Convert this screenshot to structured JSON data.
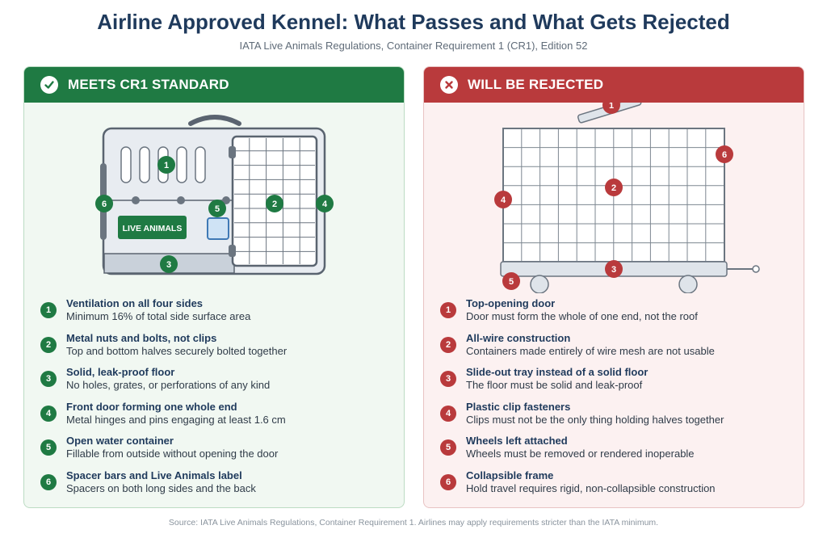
{
  "title": "Airline Approved Kennel: What Passes and What Gets Rejected",
  "subtitle": "IATA Live Animals Regulations, Container Requirement 1 (CR1), Edition 52",
  "good_panel": {
    "heading": "MEETS CR1 STANDARD",
    "icon": "check-circle-icon",
    "color": "#1f7a43",
    "kennel_label": "LIVE ANIMALS",
    "items": [
      {
        "num": "1",
        "title": "Ventilation on all four sides",
        "desc": "Minimum 16% of total side surface area"
      },
      {
        "num": "2",
        "title": "Metal nuts and bolts, not clips",
        "desc": "Top and bottom halves securely bolted together"
      },
      {
        "num": "3",
        "title": "Solid, leak-proof floor",
        "desc": "No holes, grates, or perforations of any kind"
      },
      {
        "num": "4",
        "title": "Front door forming one whole end",
        "desc": "Metal hinges and pins engaging at least 1.6 cm"
      },
      {
        "num": "5",
        "title": "Open water container",
        "desc": "Fillable from outside without opening the door"
      },
      {
        "num": "6",
        "title": "Spacer bars and Live Animals label",
        "desc": "Spacers on both long sides and the back"
      }
    ]
  },
  "bad_panel": {
    "heading": "WILL BE REJECTED",
    "icon": "x-circle-icon",
    "color": "#b93a3c",
    "items": [
      {
        "num": "1",
        "title": "Top-opening door",
        "desc": "Door must form the whole of one end, not the roof"
      },
      {
        "num": "2",
        "title": "All-wire construction",
        "desc": "Containers made entirely of wire mesh are not usable"
      },
      {
        "num": "3",
        "title": "Slide-out tray instead of a solid floor",
        "desc": "The floor must be solid and leak-proof"
      },
      {
        "num": "4",
        "title": "Plastic clip fasteners",
        "desc": "Clips must not be the only thing holding halves together"
      },
      {
        "num": "5",
        "title": "Wheels left attached",
        "desc": "Wheels must be removed or rendered inoperable"
      },
      {
        "num": "6",
        "title": "Collapsible frame",
        "desc": "Hold travel requires rigid, non-collapsible construction"
      }
    ]
  },
  "source": "Source: IATA Live Animals Regulations, Container Requirement 1. Airlines may apply requirements stricter than the IATA minimum."
}
